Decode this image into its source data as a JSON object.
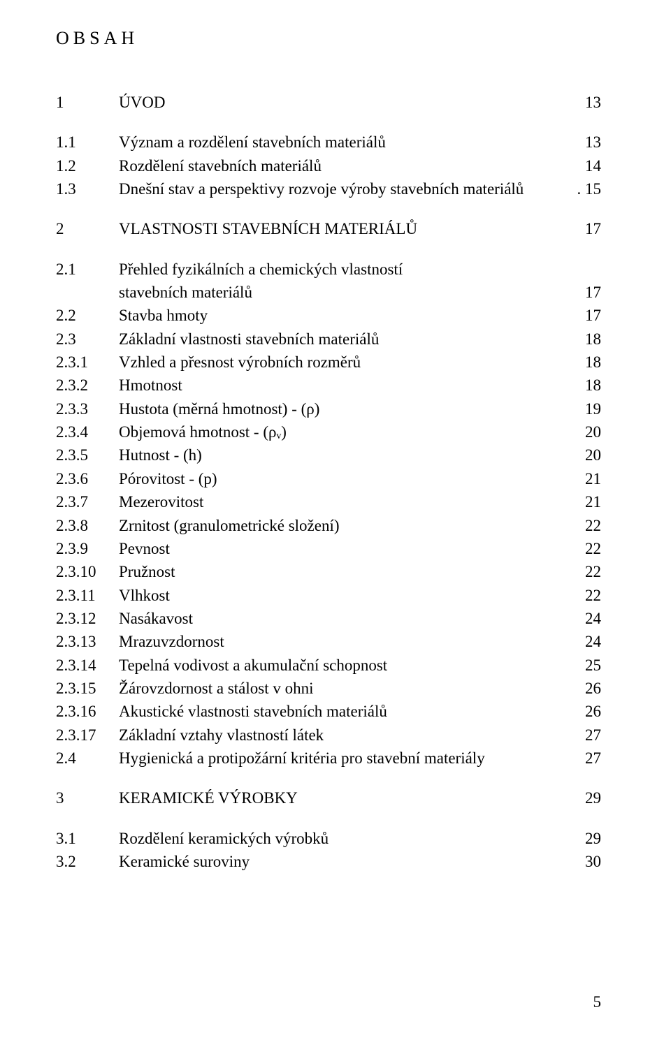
{
  "heading": "OBSAH",
  "footer_page": "5",
  "toc_text_color": "#000000",
  "background_color": "#ffffff",
  "entries": [
    {
      "num": "1",
      "text": "ÚVOD",
      "page": "13",
      "gap_before": true
    },
    {
      "num": "1.1",
      "text": "Význam a rozdělení stavebních materiálů",
      "page": "13",
      "gap_before": true
    },
    {
      "num": "1.2",
      "text": "Rozdělení stavebních materiálů",
      "page": "14"
    },
    {
      "num": "1.3",
      "text": "Dnešní stav a perspektivy rozvoje výroby stavebních materiálů",
      "page": "15",
      "nodots": true
    },
    {
      "num": "2",
      "text": "VLASTNOSTI STAVEBNÍCH MATERIÁLŮ",
      "page": "17",
      "gap_before": true
    },
    {
      "num": "2.1",
      "text_line1": "Přehled fyzikálních a chemických vlastností",
      "text_line2": "stavebních materiálů",
      "page": "17",
      "twoline": true,
      "gap_before": true
    },
    {
      "num": "2.2",
      "text": "Stavba hmoty",
      "page": "17"
    },
    {
      "num": "2.3",
      "text": "Základní vlastnosti stavebních materiálů",
      "page": "18"
    },
    {
      "num": "2.3.1",
      "text": "Vzhled a přesnost výrobních rozměrů",
      "page": "18"
    },
    {
      "num": "2.3.2",
      "text": "Hmotnost",
      "page": "18"
    },
    {
      "num": "2.3.3",
      "text": "Hustota (měrná hmotnost) - (ρ)",
      "page": "19",
      "italic_last": true
    },
    {
      "num": "2.3.4",
      "text": "Objemová hmotnost - (ρᵥ)",
      "page": "20",
      "italic_last": true
    },
    {
      "num": "2.3.5",
      "text": "Hutnost - (h)",
      "page": "20",
      "italic_last": true
    },
    {
      "num": "2.3.6",
      "text": "Pórovitost - (p)",
      "page": "21",
      "italic_last": true
    },
    {
      "num": "2.3.7",
      "text": "Mezerovitost",
      "page": "21"
    },
    {
      "num": "2.3.8",
      "text": "Zrnitost (granulometrické složení)",
      "page": "22"
    },
    {
      "num": "2.3.9",
      "text": "Pevnost",
      "page": "22"
    },
    {
      "num": "2.3.10",
      "text": "Pružnost",
      "page": "22"
    },
    {
      "num": "2.3.11",
      "text": "Vlhkost",
      "page": "22"
    },
    {
      "num": "2.3.12",
      "text": "Nasákavost",
      "page": "24"
    },
    {
      "num": "2.3.13",
      "text": "Mrazuvzdornost",
      "page": "24"
    },
    {
      "num": "2.3.14",
      "text": "Tepelná vodivost a akumulační schopnost",
      "page": "25"
    },
    {
      "num": "2.3.15",
      "text": "Žárovzdornost a stálost v ohni",
      "page": "26"
    },
    {
      "num": "2.3.16",
      "text": "Akustické vlastnosti stavebních materiálů",
      "page": "26"
    },
    {
      "num": "2.3.17",
      "text": "Základní vztahy vlastností látek",
      "page": "27"
    },
    {
      "num": "2.4",
      "text": "Hygienická a protipožární kritéria pro stavební materiály",
      "page": "27"
    },
    {
      "num": "3",
      "text": "KERAMICKÉ VÝROBKY",
      "page": "29",
      "gap_before": true
    },
    {
      "num": "3.1",
      "text": "Rozdělení keramických výrobků",
      "page": "29",
      "gap_before": true
    },
    {
      "num": "3.2",
      "text": "Keramické suroviny",
      "page": "30"
    }
  ]
}
